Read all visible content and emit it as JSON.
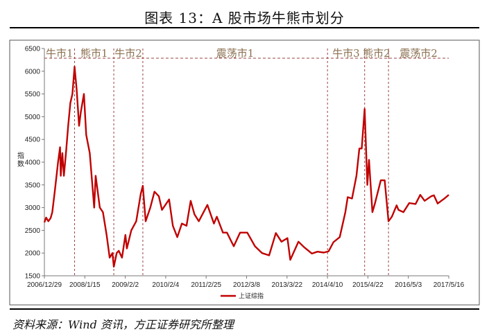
{
  "header": {
    "title": "图表 13：A 股市场牛熊市划分",
    "source": "资料来源：Wind 资讯，方正证券研究所整理"
  },
  "chart_data": {
    "type": "line",
    "title": "图表 13：A 股市场牛熊市划分",
    "ylabel": "指数",
    "xlabel": "",
    "ylim": [
      1500,
      6500
    ],
    "yticks": [
      1500,
      2000,
      2500,
      3000,
      3500,
      4000,
      4500,
      5000,
      5500,
      6000,
      6500
    ],
    "xlim": [
      "2006-12-29",
      "2017-08-31"
    ],
    "xtick_labels": [
      "2006/12/29",
      "2008/1/15",
      "2009/2/2",
      "2010/2/4",
      "2011/2/25",
      "2012/3/8",
      "2013/3/22",
      "2014/4/10",
      "2015/4/22",
      "2016/5/3",
      "2017/5/16"
    ],
    "grid": false,
    "legend": {
      "position": "bottom-center"
    },
    "series": [
      {
        "name": "上证综指",
        "color": "#c00000",
        "points": [
          [
            "2006-12-29",
            2675
          ],
          [
            "2007-01-15",
            2780
          ],
          [
            "2007-02-05",
            2700
          ],
          [
            "2007-02-27",
            2770
          ],
          [
            "2007-03-15",
            2900
          ],
          [
            "2007-04-10",
            3400
          ],
          [
            "2007-05-10",
            4000
          ],
          [
            "2007-05-29",
            4330
          ],
          [
            "2007-06-05",
            3700
          ],
          [
            "2007-06-20",
            4200
          ],
          [
            "2007-07-05",
            3700
          ],
          [
            "2007-07-25",
            4200
          ],
          [
            "2007-08-15",
            4800
          ],
          [
            "2007-09-05",
            5300
          ],
          [
            "2007-09-25",
            5500
          ],
          [
            "2007-10-16",
            6100
          ],
          [
            "2007-11-05",
            5600
          ],
          [
            "2007-11-28",
            4800
          ],
          [
            "2007-12-15",
            5100
          ],
          [
            "2008-01-14",
            5500
          ],
          [
            "2008-02-05",
            4600
          ],
          [
            "2008-03-10",
            4200
          ],
          [
            "2008-04-22",
            3000
          ],
          [
            "2008-05-06",
            3700
          ],
          [
            "2008-06-15",
            3000
          ],
          [
            "2008-07-15",
            2900
          ],
          [
            "2008-08-20",
            2400
          ],
          [
            "2008-09-18",
            1900
          ],
          [
            "2008-10-15",
            2000
          ],
          [
            "2008-10-28",
            1700
          ],
          [
            "2008-11-25",
            2000
          ],
          [
            "2008-12-15",
            2050
          ],
          [
            "2009-01-15",
            1900
          ],
          [
            "2009-02-17",
            2400
          ],
          [
            "2009-03-03",
            2100
          ],
          [
            "2009-04-15",
            2500
          ],
          [
            "2009-06-01",
            2700
          ],
          [
            "2009-07-15",
            3300
          ],
          [
            "2009-08-04",
            3480
          ],
          [
            "2009-08-31",
            2700
          ],
          [
            "2009-10-15",
            3000
          ],
          [
            "2009-11-24",
            3350
          ],
          [
            "2010-01-05",
            3250
          ],
          [
            "2010-02-04",
            2950
          ],
          [
            "2010-04-14",
            3180
          ],
          [
            "2010-05-20",
            2600
          ],
          [
            "2010-07-02",
            2350
          ],
          [
            "2010-08-15",
            2650
          ],
          [
            "2010-09-29",
            2600
          ],
          [
            "2010-11-08",
            3150
          ],
          [
            "2010-12-15",
            2850
          ],
          [
            "2011-01-25",
            2700
          ],
          [
            "2011-04-18",
            3060
          ],
          [
            "2011-06-20",
            2650
          ],
          [
            "2011-07-18",
            2800
          ],
          [
            "2011-09-15",
            2450
          ],
          [
            "2011-10-24",
            2450
          ],
          [
            "2011-12-28",
            2150
          ],
          [
            "2012-02-27",
            2450
          ],
          [
            "2012-05-07",
            2450
          ],
          [
            "2012-07-20",
            2150
          ],
          [
            "2012-09-26",
            2000
          ],
          [
            "2012-12-03",
            1950
          ],
          [
            "2013-02-06",
            2440
          ],
          [
            "2013-04-01",
            2250
          ],
          [
            "2013-05-29",
            2330
          ],
          [
            "2013-06-25",
            1850
          ],
          [
            "2013-09-12",
            2250
          ],
          [
            "2013-11-05",
            2130
          ],
          [
            "2014-01-20",
            1990
          ],
          [
            "2014-03-15",
            2030
          ],
          [
            "2014-05-15",
            2010
          ],
          [
            "2014-06-30",
            2040
          ],
          [
            "2014-08-15",
            2240
          ],
          [
            "2014-10-15",
            2350
          ],
          [
            "2014-12-08",
            2900
          ],
          [
            "2014-12-31",
            3230
          ],
          [
            "2015-02-10",
            3200
          ],
          [
            "2015-03-25",
            3700
          ],
          [
            "2015-04-22",
            4300
          ],
          [
            "2015-05-15",
            4300
          ],
          [
            "2015-06-12",
            5170
          ],
          [
            "2015-07-08",
            3500
          ],
          [
            "2015-07-24",
            4050
          ],
          [
            "2015-08-26",
            2900
          ],
          [
            "2015-09-20",
            3100
          ],
          [
            "2015-11-15",
            3600
          ],
          [
            "2015-12-22",
            3600
          ],
          [
            "2016-01-28",
            2700
          ],
          [
            "2016-03-01",
            2800
          ],
          [
            "2016-04-15",
            3050
          ],
          [
            "2016-05-03",
            2950
          ],
          [
            "2016-06-20",
            2900
          ],
          [
            "2016-08-15",
            3100
          ],
          [
            "2016-10-15",
            3080
          ],
          [
            "2016-11-29",
            3280
          ],
          [
            "2017-01-10",
            3150
          ],
          [
            "2017-03-15",
            3250
          ],
          [
            "2017-04-10",
            3270
          ],
          [
            "2017-05-16",
            3090
          ],
          [
            "2017-06-20",
            3150
          ],
          [
            "2017-07-20",
            3200
          ],
          [
            "2017-08-31",
            3280
          ]
        ]
      }
    ],
    "phases": [
      {
        "label": "牛市1",
        "start": "2006-12-29",
        "end": "2007-10-16"
      },
      {
        "label": "熊市1",
        "start": "2007-10-16",
        "end": "2008-10-28"
      },
      {
        "label": "牛市2",
        "start": "2008-10-28",
        "end": "2009-08-04"
      },
      {
        "label": "震荡市1",
        "start": "2009-08-04",
        "end": "2014-06-19"
      },
      {
        "label": "牛市3",
        "start": "2014-06-19",
        "end": "2015-06-12"
      },
      {
        "label": "熊市2",
        "start": "2015-06-12",
        "end": "2016-01-28"
      },
      {
        "label": "震荡市2",
        "start": "2016-01-28",
        "end": "2017-08-31"
      }
    ]
  }
}
